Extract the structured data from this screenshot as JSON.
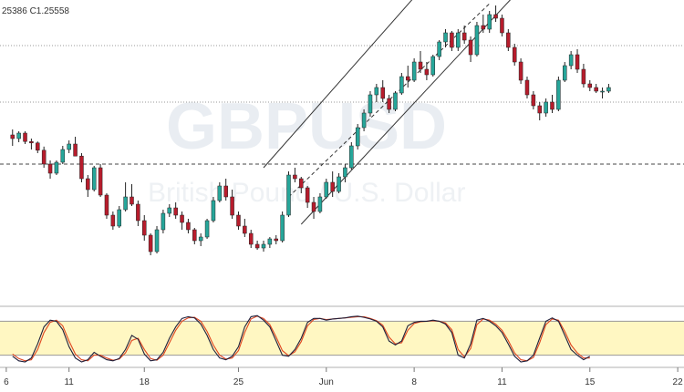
{
  "header": {
    "ohlc_text": "25386  C1.25558"
  },
  "watermark": {
    "symbol": "GBPUSD",
    "description": "British Pound / U.S. Dollar"
  },
  "colors": {
    "bull": "#26a69a",
    "bear": "#b71c2c",
    "stoch_k": "#1f1f3a",
    "stoch_d": "#e0461f",
    "band": "#fff7c2"
  },
  "chart_data": {
    "type": "candlestick",
    "series": [
      {
        "name": "",
        "values": [
          [
            2,
            1.273,
            1.2745,
            1.27,
            1.272
          ],
          [
            3,
            1.272,
            1.274,
            1.271,
            1.2735
          ],
          [
            4,
            1.2735,
            1.274,
            1.2705,
            1.2712
          ],
          [
            5,
            1.2712,
            1.272,
            1.269,
            1.2708
          ],
          [
            6,
            1.2708,
            1.2712,
            1.268,
            1.2688
          ],
          [
            7,
            1.2688,
            1.2698,
            1.264,
            1.265
          ],
          [
            8,
            1.265,
            1.266,
            1.261,
            1.2625
          ],
          [
            9,
            1.2625,
            1.266,
            1.262,
            1.2655
          ],
          [
            10,
            1.2655,
            1.27,
            1.265,
            1.269
          ],
          [
            11,
            1.269,
            1.2715,
            1.268,
            1.2705
          ],
          [
            12,
            1.2705,
            1.2725,
            1.269,
            1.2672
          ],
          [
            13,
            1.2672,
            1.268,
            1.26,
            1.261
          ],
          [
            14,
            1.261,
            1.262,
            1.256,
            1.258
          ],
          [
            15,
            1.258,
            1.2645,
            1.2575,
            1.264
          ],
          [
            16,
            1.264,
            1.265,
            1.256,
            1.2565
          ],
          [
            17,
            1.2565,
            1.257,
            1.25,
            1.251
          ],
          [
            18,
            1.251,
            1.252,
            1.247,
            1.248
          ],
          [
            19,
            1.248,
            1.2535,
            1.2475,
            1.2525
          ],
          [
            20,
            1.2525,
            1.26,
            1.252,
            1.256
          ],
          [
            21,
            1.256,
            1.2595,
            1.2535,
            1.254
          ],
          [
            22,
            1.254,
            1.255,
            1.248,
            1.2495
          ],
          [
            23,
            1.2495,
            1.251,
            1.244,
            1.2455
          ],
          [
            24,
            1.2455,
            1.246,
            1.24,
            1.241
          ],
          [
            25,
            1.241,
            1.248,
            1.2405,
            1.247
          ],
          [
            26,
            1.247,
            1.2525,
            1.246,
            1.2515
          ],
          [
            27,
            1.2515,
            1.254,
            1.2505,
            1.253
          ],
          [
            28,
            1.253,
            1.2545,
            1.25,
            1.251
          ],
          [
            29,
            1.251,
            1.252,
            1.247,
            1.249
          ],
          [
            30,
            1.249,
            1.25,
            1.246,
            1.247
          ],
          [
            31,
            1.247,
            1.2475,
            1.243,
            1.244
          ],
          [
            32,
            1.244,
            1.246,
            1.2425,
            1.245
          ],
          [
            33,
            1.245,
            1.25,
            1.2445,
            1.2495
          ],
          [
            34,
            1.2495,
            1.256,
            1.249,
            1.255
          ],
          [
            35,
            1.255,
            1.26,
            1.2545,
            1.259
          ],
          [
            36,
            1.259,
            1.261,
            1.255,
            1.256
          ],
          [
            37,
            1.256,
            1.258,
            1.25,
            1.251
          ],
          [
            38,
            1.251,
            1.252,
            1.247,
            1.248
          ],
          [
            39,
            1.248,
            1.25,
            1.245,
            1.246
          ],
          [
            40,
            1.246,
            1.247,
            1.242,
            1.243
          ],
          [
            41,
            1.243,
            1.244,
            1.2415,
            1.242
          ],
          [
            42,
            1.242,
            1.244,
            1.241,
            1.243
          ],
          [
            43,
            1.243,
            1.245,
            1.242,
            1.2445
          ],
          [
            44,
            1.2445,
            1.2455,
            1.243,
            1.244
          ],
          [
            45,
            1.244,
            1.252,
            1.2435,
            1.251
          ],
          [
            46,
            1.251,
            1.263,
            1.2505,
            1.262
          ],
          [
            47,
            1.262,
            1.264,
            1.26,
            1.261
          ],
          [
            48,
            1.261,
            1.2615,
            1.257,
            1.2585
          ],
          [
            49,
            1.2585,
            1.259,
            1.253,
            1.2545
          ],
          [
            50,
            1.2545,
            1.256,
            1.25,
            1.252
          ],
          [
            51,
            1.252,
            1.257,
            1.2515,
            1.256
          ],
          [
            52,
            1.256,
            1.261,
            1.2555,
            1.26
          ],
          [
            53,
            1.26,
            1.263,
            1.256,
            1.2575
          ],
          [
            54,
            1.2575,
            1.2625,
            1.257,
            1.2615
          ],
          [
            55,
            1.2615,
            1.265,
            1.26,
            1.264
          ],
          [
            56,
            1.264,
            1.271,
            1.2635,
            1.27
          ],
          [
            57,
            1.27,
            1.276,
            1.269,
            1.275
          ],
          [
            58,
            1.275,
            1.28,
            1.274,
            1.279
          ],
          [
            59,
            1.279,
            1.285,
            1.278,
            1.284
          ],
          [
            60,
            1.284,
            1.287,
            1.282,
            1.286
          ],
          [
            61,
            1.286,
            1.288,
            1.282,
            1.283
          ],
          [
            62,
            1.283,
            1.284,
            1.279,
            1.28
          ],
          [
            63,
            1.28,
            1.285,
            1.2795,
            1.2845
          ],
          [
            64,
            1.2845,
            1.29,
            1.284,
            1.289
          ],
          [
            65,
            1.289,
            1.292,
            1.286,
            1.288
          ],
          [
            66,
            1.288,
            1.294,
            1.2875,
            1.293
          ],
          [
            67,
            1.293,
            1.296,
            1.29,
            1.291
          ],
          [
            68,
            1.291,
            1.293,
            1.288,
            1.2895
          ],
          [
            69,
            1.2895,
            1.295,
            1.289,
            1.2945
          ],
          [
            70,
            1.2945,
            1.299,
            1.2935,
            1.2985
          ],
          [
            71,
            1.2985,
            1.302,
            1.297,
            1.301
          ],
          [
            72,
            1.301,
            1.3015,
            1.296,
            1.297
          ],
          [
            73,
            1.297,
            1.302,
            1.296,
            1.301
          ],
          [
            74,
            1.301,
            1.303,
            1.298,
            1.299
          ],
          [
            75,
            1.299,
            1.3,
            1.293,
            1.295
          ],
          [
            76,
            1.295,
            1.304,
            1.2945,
            1.303
          ],
          [
            77,
            1.303,
            1.306,
            1.301,
            1.302
          ],
          [
            78,
            1.302,
            1.307,
            1.301,
            1.306
          ],
          [
            79,
            1.306,
            1.3085,
            1.304,
            1.305
          ],
          [
            80,
            1.305,
            1.306,
            1.3,
            1.301
          ],
          [
            81,
            1.301,
            1.302,
            1.296,
            1.297
          ],
          [
            82,
            1.297,
            1.298,
            1.292,
            1.293
          ],
          [
            83,
            1.293,
            1.294,
            1.287,
            1.288
          ],
          [
            84,
            1.288,
            1.289,
            1.283,
            1.284
          ],
          [
            85,
            1.284,
            1.285,
            1.28,
            1.281
          ],
          [
            86,
            1.281,
            1.282,
            1.277,
            1.279
          ],
          [
            87,
            1.279,
            1.283,
            1.278,
            1.282
          ],
          [
            88,
            1.282,
            1.284,
            1.279,
            1.28
          ],
          [
            89,
            1.28,
            1.289,
            1.2795,
            1.288
          ],
          [
            90,
            1.288,
            1.293,
            1.2875,
            1.292
          ],
          [
            91,
            1.292,
            1.296,
            1.291,
            1.295
          ],
          [
            92,
            1.295,
            1.2965,
            1.29,
            1.291
          ],
          [
            93,
            1.291,
            1.2925,
            1.286,
            1.287
          ],
          [
            94,
            1.287,
            1.288,
            1.285,
            1.286
          ],
          [
            95,
            1.286,
            1.287,
            1.2845,
            1.285
          ],
          [
            96,
            1.285,
            1.286,
            1.283,
            1.285
          ],
          [
            97,
            1.285,
            1.287,
            1.2845,
            1.286
          ]
        ]
      }
    ],
    "x_ticks": [
      {
        "x": 1,
        "label": "6"
      },
      {
        "x": 11,
        "label": "11"
      },
      {
        "x": 23,
        "label": "18"
      },
      {
        "x": 38,
        "label": "25"
      },
      {
        "x": 52,
        "label": "Jun"
      },
      {
        "x": 66,
        "label": "8"
      },
      {
        "x": 80,
        "label": "11"
      },
      {
        "x": 94,
        "label": "15"
      },
      {
        "x": 108,
        "label": "22"
      }
    ],
    "h_levels": [
      {
        "y": 1.2975,
        "style": "dotted"
      },
      {
        "y": 1.282,
        "style": "dotted"
      },
      {
        "y": 1.265,
        "style": "dashed"
      }
    ],
    "channel": {
      "upper": [
        [
          42,
          1.264
        ],
        [
          80,
          1.338
        ]
      ],
      "middle": [
        [
          46,
          1.256
        ],
        [
          78,
          1.309
        ]
      ],
      "lower": [
        [
          48,
          1.2485
        ],
        [
          84,
          1.315
        ]
      ]
    },
    "stochastic": {
      "band": [
        20,
        80
      ],
      "k": [
        18,
        10,
        8,
        15,
        40,
        70,
        82,
        80,
        65,
        35,
        15,
        8,
        12,
        25,
        18,
        12,
        10,
        14,
        30,
        55,
        48,
        22,
        10,
        12,
        25,
        50,
        70,
        85,
        88,
        86,
        75,
        55,
        30,
        15,
        12,
        18,
        35,
        70,
        88,
        90,
        82,
        70,
        45,
        20,
        18,
        30,
        50,
        78,
        85,
        85,
        82,
        84,
        85,
        86,
        88,
        89,
        87,
        84,
        80,
        70,
        45,
        38,
        45,
        72,
        78,
        80,
        80,
        82,
        80,
        75,
        60,
        20,
        15,
        40,
        82,
        85,
        80,
        72,
        60,
        40,
        18,
        8,
        10,
        20,
        50,
        80,
        86,
        80,
        55,
        30,
        20,
        12,
        18
      ],
      "d": [
        22,
        14,
        10,
        12,
        30,
        60,
        78,
        82,
        72,
        45,
        22,
        12,
        10,
        20,
        20,
        15,
        11,
        13,
        24,
        46,
        50,
        30,
        14,
        11,
        20,
        42,
        64,
        80,
        86,
        87,
        80,
        62,
        38,
        20,
        13,
        15,
        28,
        60,
        84,
        89,
        85,
        74,
        52,
        28,
        19,
        26,
        44,
        72,
        83,
        85,
        83,
        84,
        85,
        86,
        87,
        88,
        88,
        85,
        81,
        73,
        52,
        40,
        42,
        64,
        76,
        79,
        80,
        81,
        80,
        77,
        65,
        30,
        17,
        32,
        74,
        84,
        82,
        75,
        64,
        46,
        24,
        12,
        10,
        16,
        42,
        74,
        84,
        82,
        62,
        38,
        24,
        15,
        15
      ]
    },
    "xlim": [
      0,
      109
    ],
    "ylim": [
      1.226,
      1.31
    ]
  }
}
